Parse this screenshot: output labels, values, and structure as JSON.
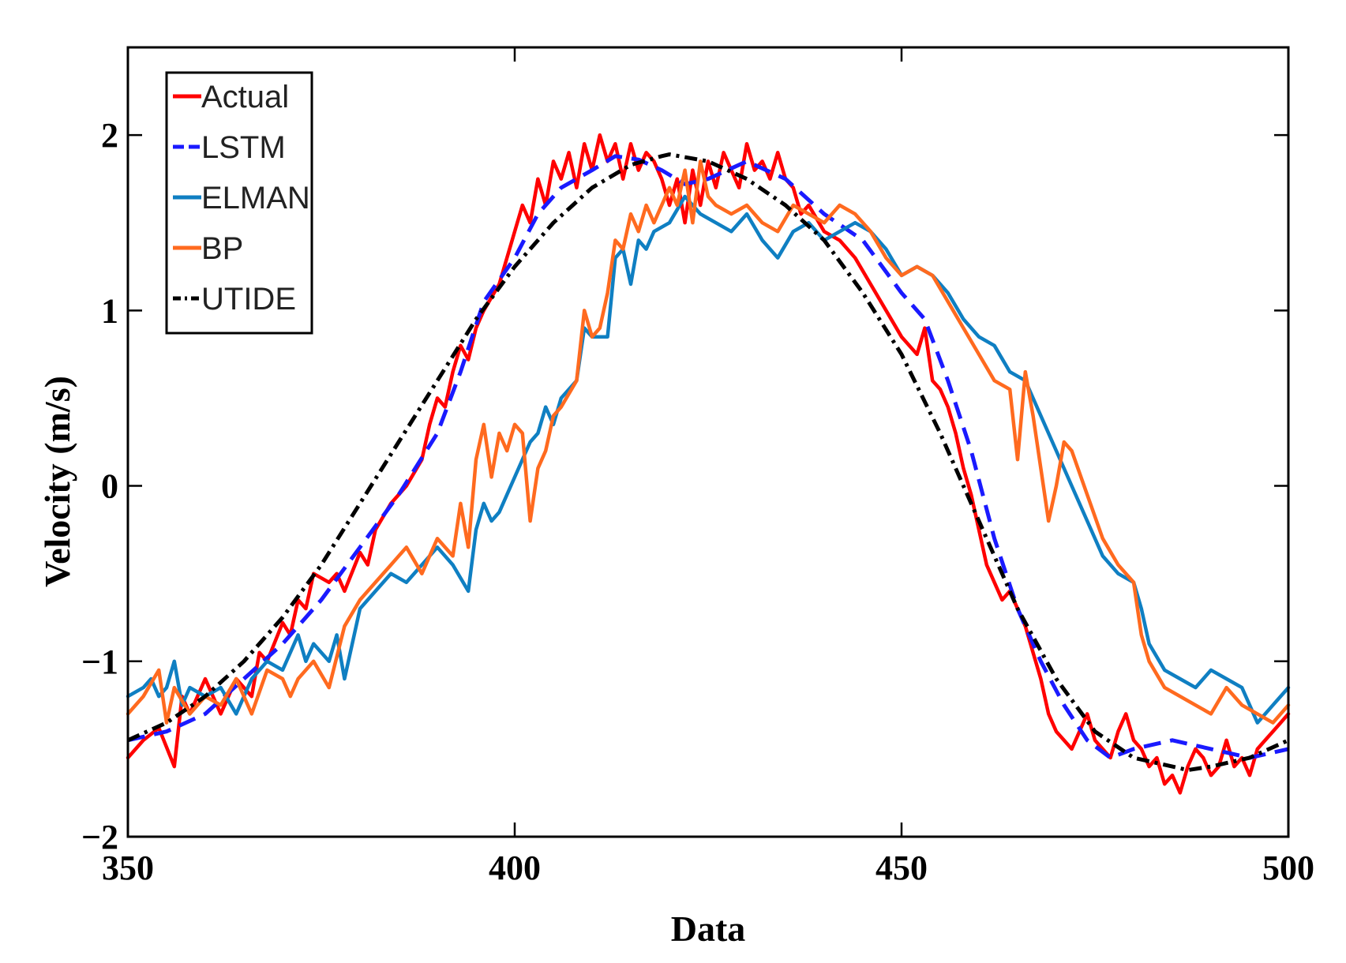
{
  "chart_data": {
    "type": "line",
    "title": "",
    "xlabel": "Data",
    "ylabel": "Velocity (m/s)",
    "xlim": [
      350,
      500
    ],
    "ylim": [
      -2,
      2.5
    ],
    "xticks": [
      350,
      400,
      450,
      500
    ],
    "xtick_labels": [
      "350",
      "400",
      "450",
      "500"
    ],
    "yticks": [
      -2,
      -1,
      0,
      1,
      2
    ],
    "ytick_labels": [
      "−2",
      "−1",
      "0",
      "1",
      "2"
    ],
    "grid": false,
    "legend_position": "top-left",
    "series": [
      {
        "name": "Actual",
        "color": "#ff0000",
        "dash": "solid",
        "x": [
          350,
          352,
          354,
          356,
          357,
          358,
          360,
          362,
          364,
          366,
          367,
          368,
          370,
          371,
          372,
          373,
          374,
          376,
          377,
          378,
          380,
          381,
          382,
          384,
          386,
          388,
          389,
          390,
          391,
          392,
          393,
          394,
          395,
          396,
          398,
          400,
          401,
          402,
          403,
          404,
          405,
          406,
          407,
          408,
          409,
          410,
          411,
          412,
          413,
          414,
          415,
          416,
          417,
          418,
          419,
          420,
          421,
          422,
          423,
          424,
          425,
          426,
          427,
          428,
          429,
          430,
          431,
          432,
          433,
          434,
          435,
          436,
          437,
          438,
          440,
          442,
          444,
          446,
          448,
          450,
          452,
          453,
          454,
          455,
          456,
          457,
          458,
          459,
          460,
          461,
          462,
          463,
          464,
          465,
          466,
          467,
          468,
          469,
          470,
          471,
          472,
          473,
          474,
          475,
          476,
          477,
          478,
          479,
          480,
          481,
          482,
          483,
          484,
          485,
          486,
          487,
          488,
          489,
          490,
          491,
          492,
          493,
          494,
          495,
          496,
          497,
          498,
          499,
          500
        ],
        "values": [
          -1.55,
          -1.45,
          -1.38,
          -1.6,
          -1.2,
          -1.3,
          -1.1,
          -1.3,
          -1.1,
          -1.2,
          -0.95,
          -1.0,
          -0.78,
          -0.85,
          -0.65,
          -0.7,
          -0.5,
          -0.55,
          -0.5,
          -0.6,
          -0.38,
          -0.45,
          -0.25,
          -0.1,
          0.0,
          0.15,
          0.35,
          0.5,
          0.45,
          0.65,
          0.8,
          0.72,
          0.9,
          1.0,
          1.15,
          1.45,
          1.6,
          1.5,
          1.75,
          1.6,
          1.85,
          1.75,
          1.9,
          1.7,
          1.95,
          1.8,
          2.0,
          1.85,
          1.95,
          1.75,
          1.95,
          1.8,
          1.9,
          1.85,
          1.75,
          1.6,
          1.75,
          1.5,
          1.8,
          1.6,
          1.85,
          1.7,
          1.9,
          1.8,
          1.7,
          1.95,
          1.8,
          1.85,
          1.75,
          1.9,
          1.75,
          1.7,
          1.55,
          1.6,
          1.45,
          1.4,
          1.3,
          1.15,
          1.0,
          0.85,
          0.75,
          0.9,
          0.6,
          0.55,
          0.45,
          0.3,
          0.1,
          -0.05,
          -0.25,
          -0.45,
          -0.55,
          -0.65,
          -0.6,
          -0.7,
          -0.8,
          -0.95,
          -1.1,
          -1.3,
          -1.4,
          -1.45,
          -1.5,
          -1.4,
          -1.3,
          -1.45,
          -1.5,
          -1.55,
          -1.4,
          -1.3,
          -1.45,
          -1.5,
          -1.6,
          -1.55,
          -1.7,
          -1.65,
          -1.75,
          -1.6,
          -1.5,
          -1.55,
          -1.65,
          -1.6,
          -1.45,
          -1.6,
          -1.55,
          -1.65,
          -1.5,
          -1.45,
          -1.4,
          -1.35,
          -1.3
        ]
      },
      {
        "name": "LSTM",
        "color": "#1a1aff",
        "dash": "22 12",
        "x": [
          350,
          355,
          360,
          365,
          370,
          375,
          380,
          385,
          390,
          393,
          396,
          400,
          403,
          406,
          410,
          413,
          416,
          419,
          422,
          425,
          430,
          435,
          440,
          445,
          450,
          453,
          456,
          459,
          462,
          465,
          468,
          471,
          474,
          477,
          480,
          485,
          490,
          495,
          500
        ],
        "values": [
          -1.45,
          -1.4,
          -1.3,
          -1.1,
          -0.9,
          -0.65,
          -0.35,
          -0.05,
          0.3,
          0.65,
          1.05,
          1.3,
          1.55,
          1.7,
          1.8,
          1.88,
          1.86,
          1.8,
          1.72,
          1.75,
          1.85,
          1.75,
          1.55,
          1.4,
          1.1,
          0.95,
          0.6,
          0.2,
          -0.3,
          -0.7,
          -1.0,
          -1.25,
          -1.45,
          -1.55,
          -1.5,
          -1.45,
          -1.5,
          -1.55,
          -1.5
        ]
      },
      {
        "name": "ELMAN",
        "color": "#0f7fc2",
        "dash": "solid",
        "x": [
          350,
          352,
          353,
          354,
          355,
          356,
          357,
          358,
          360,
          362,
          364,
          366,
          368,
          370,
          372,
          373,
          374,
          376,
          377,
          378,
          380,
          382,
          384,
          386,
          388,
          390,
          392,
          394,
          395,
          396,
          397,
          398,
          400,
          402,
          403,
          404,
          405,
          406,
          408,
          409,
          410,
          412,
          413,
          414,
          415,
          416,
          417,
          418,
          420,
          422,
          424,
          426,
          428,
          430,
          432,
          434,
          436,
          438,
          440,
          442,
          444,
          446,
          448,
          450,
          452,
          454,
          456,
          458,
          460,
          462,
          464,
          466,
          468,
          470,
          472,
          474,
          476,
          478,
          480,
          481,
          482,
          484,
          486,
          488,
          490,
          492,
          494,
          496,
          498,
          500
        ],
        "values": [
          -1.2,
          -1.15,
          -1.1,
          -1.2,
          -1.15,
          -1.0,
          -1.25,
          -1.15,
          -1.2,
          -1.15,
          -1.3,
          -1.1,
          -1.0,
          -1.05,
          -0.85,
          -1.0,
          -0.9,
          -1.0,
          -0.85,
          -1.1,
          -0.7,
          -0.6,
          -0.5,
          -0.55,
          -0.45,
          -0.35,
          -0.45,
          -0.6,
          -0.25,
          -0.1,
          -0.2,
          -0.15,
          0.05,
          0.25,
          0.3,
          0.45,
          0.35,
          0.5,
          0.6,
          0.9,
          0.85,
          0.85,
          1.3,
          1.35,
          1.15,
          1.4,
          1.35,
          1.45,
          1.5,
          1.65,
          1.55,
          1.5,
          1.45,
          1.55,
          1.4,
          1.3,
          1.45,
          1.5,
          1.4,
          1.45,
          1.5,
          1.45,
          1.35,
          1.2,
          1.25,
          1.2,
          1.1,
          0.95,
          0.85,
          0.8,
          0.65,
          0.6,
          0.4,
          0.2,
          0.0,
          -0.2,
          -0.4,
          -0.5,
          -0.55,
          -0.7,
          -0.9,
          -1.05,
          -1.1,
          -1.15,
          -1.05,
          -1.1,
          -1.15,
          -1.35,
          -1.25,
          -1.15
        ]
      },
      {
        "name": "BP",
        "color": "#ff6a1f",
        "dash": "solid",
        "x": [
          350,
          352,
          354,
          355,
          356,
          358,
          360,
          362,
          364,
          366,
          368,
          370,
          371,
          372,
          374,
          376,
          378,
          380,
          382,
          384,
          386,
          388,
          390,
          392,
          393,
          394,
          395,
          396,
          397,
          398,
          399,
          400,
          401,
          402,
          403,
          404,
          405,
          406,
          408,
          409,
          410,
          411,
          412,
          413,
          414,
          415,
          416,
          417,
          418,
          420,
          421,
          422,
          423,
          424,
          425,
          426,
          428,
          430,
          432,
          434,
          436,
          438,
          440,
          442,
          444,
          446,
          448,
          450,
          452,
          454,
          456,
          458,
          460,
          462,
          464,
          465,
          466,
          467,
          468,
          469,
          470,
          471,
          472,
          474,
          476,
          478,
          480,
          481,
          482,
          484,
          486,
          488,
          490,
          492,
          494,
          496,
          498,
          500
        ],
        "values": [
          -1.3,
          -1.2,
          -1.05,
          -1.35,
          -1.15,
          -1.3,
          -1.2,
          -1.25,
          -1.1,
          -1.3,
          -1.05,
          -1.1,
          -1.2,
          -1.1,
          -1.0,
          -1.15,
          -0.8,
          -0.65,
          -0.55,
          -0.45,
          -0.35,
          -0.5,
          -0.3,
          -0.4,
          -0.1,
          -0.35,
          0.15,
          0.35,
          0.05,
          0.3,
          0.2,
          0.35,
          0.3,
          -0.2,
          0.1,
          0.2,
          0.4,
          0.45,
          0.6,
          1.0,
          0.85,
          0.9,
          1.1,
          1.4,
          1.35,
          1.55,
          1.45,
          1.6,
          1.5,
          1.7,
          1.6,
          1.8,
          1.5,
          1.85,
          1.65,
          1.6,
          1.55,
          1.6,
          1.5,
          1.45,
          1.6,
          1.55,
          1.5,
          1.6,
          1.55,
          1.45,
          1.3,
          1.2,
          1.25,
          1.2,
          1.05,
          0.9,
          0.75,
          0.6,
          0.55,
          0.15,
          0.65,
          0.4,
          0.1,
          -0.2,
          0.0,
          0.25,
          0.2,
          -0.05,
          -0.3,
          -0.45,
          -0.55,
          -0.85,
          -1.0,
          -1.15,
          -1.2,
          -1.25,
          -1.3,
          -1.15,
          -1.25,
          -1.3,
          -1.35,
          -1.25
        ]
      },
      {
        "name": "UTIDE",
        "color": "#000000",
        "dash": "16 7 4 7",
        "x": [
          350,
          355,
          360,
          365,
          370,
          375,
          380,
          385,
          390,
          395,
          400,
          405,
          410,
          415,
          419,
          420,
          425,
          430,
          435,
          440,
          445,
          450,
          455,
          460,
          465,
          470,
          475,
          480,
          485,
          487,
          490,
          495,
          500
        ],
        "values": [
          -1.45,
          -1.35,
          -1.2,
          -1.0,
          -0.75,
          -0.45,
          -0.1,
          0.25,
          0.6,
          0.95,
          1.25,
          1.5,
          1.7,
          1.83,
          1.88,
          1.89,
          1.85,
          1.75,
          1.6,
          1.4,
          1.1,
          0.75,
          0.3,
          -0.2,
          -0.7,
          -1.1,
          -1.4,
          -1.55,
          -1.6,
          -1.62,
          -1.6,
          -1.55,
          -1.45
        ]
      }
    ]
  }
}
